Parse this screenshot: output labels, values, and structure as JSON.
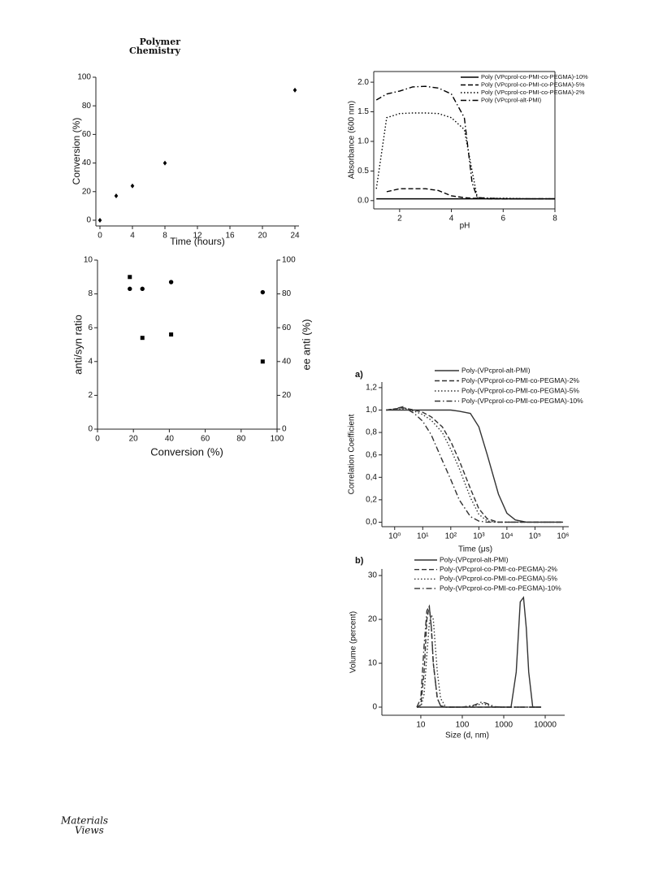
{
  "header": {
    "journal_line1": "Polymer",
    "journal_line2": "Chemistry"
  },
  "footer": {
    "logo_line1": "Materials",
    "logo_line2": "Views"
  },
  "chart_data": [
    {
      "type": "scatter",
      "xlabel": "Time (hours)",
      "ylabel": "Conversion (%)",
      "x": [
        0,
        2,
        4,
        8,
        24
      ],
      "values": [
        0,
        17,
        24,
        40,
        91
      ],
      "color": "#000000",
      "marker": "diamond",
      "xlim": [
        -0.5,
        24.5
      ],
      "xticks": [
        0,
        4,
        8,
        12,
        16,
        20,
        24
      ],
      "ylim": [
        -4,
        100
      ],
      "yticks": [
        0,
        20,
        40,
        60,
        80,
        100
      ]
    },
    {
      "type": "line",
      "xlabel": "pH",
      "ylabel": "Absorbance (600 nm)",
      "legend": "upper right",
      "x": [
        1.1,
        1.5,
        2,
        2.5,
        3,
        3.5,
        4,
        4.5,
        4.8,
        5,
        5.5,
        6,
        7,
        8
      ],
      "series": [
        {
          "name": "Poly (VPcprol-co-PMI-co-PEGMA)-10%",
          "color": "#000000",
          "dash": "solid",
          "values": [
            0.03,
            0.03,
            0.03,
            0.03,
            0.03,
            0.03,
            0.03,
            0.03,
            0.03,
            0.03,
            0.03,
            0.03,
            0.03,
            0.03
          ]
        },
        {
          "name": "Poly (VPcprol-co-PMI-co-PEGMA)-5%",
          "color": "#000000",
          "dash": "dashed",
          "values": [
            null,
            0.15,
            0.2,
            0.2,
            0.2,
            0.17,
            0.08,
            0.05,
            0.04,
            0.04,
            0.03,
            0.03,
            0.03,
            0.03
          ]
        },
        {
          "name": "Poly (VPcprol-co-PMI-co-PEGMA)-2%",
          "color": "#000000",
          "dash": "dotted",
          "values": [
            0.2,
            1.4,
            1.47,
            1.48,
            1.48,
            1.47,
            1.4,
            1.2,
            0.5,
            0.05,
            0.04,
            0.04,
            0.03,
            0.03
          ]
        },
        {
          "name": "Poly (VPcprol-alt-PMI)",
          "color": "#000000",
          "dash": "dashdot",
          "values": [
            1.7,
            1.8,
            1.85,
            1.92,
            1.93,
            1.9,
            1.8,
            1.4,
            0.3,
            0.05,
            0.04,
            0.03,
            0.03,
            0.03
          ]
        }
      ],
      "xlim": [
        1,
        8
      ],
      "xticks": [
        2,
        4,
        6,
        8
      ],
      "ylim": [
        -0.14,
        2.18
      ],
      "yticks": [
        {
          "value": 0,
          "label": "0.0"
        },
        {
          "value": 0.5,
          "label": "0.5"
        },
        {
          "value": 1,
          "label": "1.0"
        },
        {
          "value": 1.5,
          "label": "1.5"
        },
        {
          "value": 2,
          "label": "2.0"
        }
      ]
    },
    {
      "type": "scatter",
      "xlabel": "Conversion (%)",
      "ylabel": "anti/syn ratio",
      "y2label": "ee anti (%)",
      "x": [
        18,
        25,
        41,
        92
      ],
      "series": [
        {
          "color": "#000000",
          "marker": "square",
          "values": [
            9,
            5.4,
            5.6,
            4
          ]
        },
        {
          "color": "#000000",
          "marker": "circle",
          "axis": "y2",
          "values": [
            83,
            83,
            87,
            81
          ]
        }
      ],
      "xlim": [
        0,
        100
      ],
      "xticks": [
        0,
        20,
        40,
        60,
        80,
        100
      ],
      "ylim": [
        0,
        10
      ],
      "yticks": [
        0,
        2,
        4,
        6,
        8,
        10
      ],
      "y2lim": [
        0,
        100
      ],
      "y2ticks": [
        0,
        20,
        40,
        60,
        80,
        100
      ]
    },
    {
      "type": "line",
      "panel_label": "a)",
      "xlabel": "Time (μs)",
      "ylabel": "Correlation Coefficient",
      "legend": "upper right",
      "xscale": "log",
      "x": [
        0.5,
        1,
        2,
        5,
        10,
        20,
        50,
        100,
        200,
        500,
        1000,
        2000,
        5000,
        10000,
        20000,
        50000,
        100000,
        1000000
      ],
      "series": [
        {
          "name": "Poly-(VPcprol-alt-PMI)",
          "color": "#333333",
          "dash": "solid",
          "values": [
            1.0,
            1.0,
            1.0,
            1.0,
            1.0,
            1.0,
            1.0,
            1.0,
            0.99,
            0.97,
            0.85,
            0.6,
            0.25,
            0.08,
            0.02,
            0.0,
            0.0,
            0.0
          ]
        },
        {
          "name": "Poly-(VPcprol-co-PMI-co-PEGMA)-2%",
          "color": "#333333",
          "dash": "dashed",
          "values": [
            1.0,
            1.01,
            1.02,
            1.0,
            0.98,
            0.94,
            0.85,
            0.72,
            0.55,
            0.3,
            0.12,
            0.03,
            0.0,
            0.0,
            0.0,
            0.0,
            0.0,
            0.0
          ]
        },
        {
          "name": "Poly-(VPcprol-co-PMI-co-PEGMA)-5%",
          "color": "#333333",
          "dash": "dotted",
          "values": [
            1.0,
            1.01,
            1.01,
            0.99,
            0.96,
            0.91,
            0.8,
            0.65,
            0.48,
            0.22,
            0.07,
            0.01,
            0,
            0,
            0,
            0,
            0,
            0
          ]
        },
        {
          "name": "Poly-(VPcprol-co-PMI-co-PEGMA)-10%",
          "color": "#333333",
          "dash": "dashdot",
          "values": [
            1.0,
            1.01,
            1.03,
            0.97,
            0.9,
            0.78,
            0.55,
            0.38,
            0.2,
            0.05,
            0.01,
            0,
            0,
            0,
            0,
            0,
            0,
            0
          ]
        }
      ],
      "xlim": [
        0.35,
        1600000
      ],
      "xticks": [
        {
          "value": 1,
          "label": "10⁰"
        },
        {
          "value": 10,
          "label": "10¹"
        },
        {
          "value": 100,
          "label": "10²"
        },
        {
          "value": 1000,
          "label": "10³"
        },
        {
          "value": 10000,
          "label": "10⁴"
        },
        {
          "value": 100000,
          "label": "10⁵"
        },
        {
          "value": 1000000,
          "label": "10⁶"
        }
      ],
      "ylim": [
        -0.04,
        1.25
      ],
      "yticks": [
        {
          "value": 0,
          "label": "0,0"
        },
        {
          "value": 0.2,
          "label": "0,2"
        },
        {
          "value": 0.4,
          "label": "0,4"
        },
        {
          "value": 0.6,
          "label": "0,6"
        },
        {
          "value": 0.8,
          "label": "0,8"
        },
        {
          "value": 1,
          "label": "1,0"
        },
        {
          "value": 1.2,
          "label": "1,2"
        }
      ]
    },
    {
      "type": "line",
      "panel_label": "b)",
      "xlabel": "Size (d, nm)",
      "ylabel": "Volume (percent)",
      "legend": "upper right",
      "xscale": "log",
      "x": [
        8,
        10,
        12,
        14,
        16,
        18,
        20,
        25,
        30,
        40,
        100,
        200,
        300,
        400,
        600,
        1000,
        1500,
        2000,
        2500,
        3000,
        3500,
        4000,
        5000,
        8000
      ],
      "series": [
        {
          "name": "Poly-(VPcprol-alt-PMI)",
          "color": "#333333",
          "dash": "solid",
          "values": [
            0,
            0,
            0,
            0,
            0,
            0,
            0,
            0,
            0,
            0,
            0,
            0,
            0,
            0,
            0,
            0,
            0,
            8,
            24,
            25,
            18,
            8,
            0,
            0
          ]
        },
        {
          "name": "Poly-(VPcprol-co-PMI-co-PEGMA)-2%",
          "color": "#333333",
          "dash": "dashed",
          "values": [
            0,
            0.5,
            8,
            20,
            23,
            18,
            10,
            2,
            0.3,
            0,
            0,
            0,
            0,
            0,
            0,
            0,
            0,
            0,
            0,
            0,
            0,
            0,
            0,
            0
          ]
        },
        {
          "name": "Poly-(VPcprol-co-PMI-co-PEGMA)-5%",
          "color": "#333333",
          "dash": "dotted",
          "values": [
            0,
            0,
            3,
            12,
            19,
            21,
            20,
            8,
            2,
            0,
            0,
            0.3,
            0.8,
            0.5,
            0,
            0,
            0,
            0,
            0,
            0,
            0,
            0,
            0,
            0
          ]
        },
        {
          "name": "Poly-(VPcprol-co-PMI-co-PEGMA)-10%",
          "color": "#333333",
          "dash": "dashdot",
          "values": [
            0,
            2,
            14,
            22,
            23,
            18,
            10,
            2,
            0.3,
            0,
            0,
            0.5,
            1.2,
            0.8,
            0.1,
            0,
            0,
            0,
            0,
            0,
            0,
            0,
            0,
            0
          ]
        }
      ],
      "xlim": [
        1.15,
        29500
      ],
      "xticks": [
        10,
        100,
        1000,
        10000
      ],
      "ylim": [
        -1.85,
        31.5
      ],
      "yticks": [
        0,
        10,
        20,
        30
      ]
    }
  ]
}
